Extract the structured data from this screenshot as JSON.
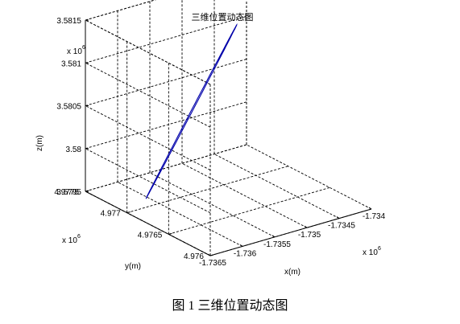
{
  "chart_data": {
    "type": "line3d",
    "title": "三维位置动态图",
    "xlabel": "x(m)",
    "ylabel": "y(m)",
    "zlabel": "z(m)",
    "x_exponent_label": "x 10",
    "x_exponent": "6",
    "y_exponent_label": "x 10",
    "y_exponent": "6",
    "z_exponent_label": "x 10",
    "z_exponent": "6",
    "xlim": [
      -1.7365,
      -1.734
    ],
    "ylim": [
      4.976,
      4.9775
    ],
    "zlim": [
      3.5795,
      3.5815
    ],
    "x_ticks": [
      "-1.7365",
      "-1.736",
      "-1.7355",
      "-1.735",
      "-1.7345",
      "-1.734"
    ],
    "y_ticks": [
      "4.976",
      "4.9765",
      "4.977",
      "4.9775"
    ],
    "z_ticks": [
      "3.5795",
      "3.58",
      "3.5805",
      "3.581",
      "3.5815"
    ],
    "x_tick_values": [
      -1.7365,
      -1.736,
      -1.7355,
      -1.735,
      -1.7345,
      -1.734
    ],
    "y_tick_values": [
      4.976,
      4.9765,
      4.977,
      4.9775
    ],
    "z_tick_values": [
      3.5795,
      3.58,
      3.5805,
      3.581,
      3.5815
    ],
    "grid": true,
    "series": [
      {
        "color": "#0000aa",
        "shape": "closed ellipse",
        "endpoint_a": {
          "x": -1.73642,
          "y": 4.97683,
          "z": 3.57974
        },
        "endpoint_b": {
          "x": -1.73458,
          "y": 4.97717,
          "z": 3.58119
        },
        "half_width": {
          "x": 2e-05,
          "y": 3e-05,
          "z": 8e-05
        }
      }
    ]
  },
  "caption": "图 1  三维位置动态图"
}
